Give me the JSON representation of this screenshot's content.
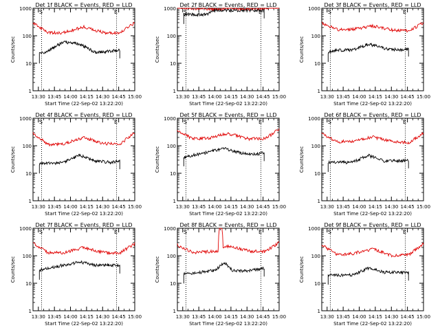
{
  "chart_data": [
    {
      "type": "line",
      "title": "Det 1f BLACK = Events, RED = LLD",
      "xlabel": "Start Time (22-Sep-02 13:22:20)",
      "ylabel": "Counts/sec",
      "y_scale": "log",
      "ylim": [
        1,
        1000
      ],
      "y_ticks": [
        "1",
        "10",
        "100",
        "1000"
      ],
      "x_range": [
        "13:25",
        "15:00"
      ],
      "x_ticks": [
        "13:30",
        "13:45",
        "14:00",
        "14:15",
        "14:30",
        "14:45",
        "15:00"
      ],
      "markers": [
        {
          "label": "S",
          "time": "13:33"
        },
        {
          "label": "E",
          "time": "14:43"
        }
      ],
      "series": [
        {
          "color": "#000000",
          "start": "13:31",
          "end": "14:46",
          "points": [
            [
              0,
              22
            ],
            [
              0.1,
              28
            ],
            [
              0.3,
              60
            ],
            [
              0.5,
              50
            ],
            [
              0.7,
              25
            ],
            [
              0.9,
              28
            ],
            [
              1,
              30
            ]
          ]
        },
        {
          "color": "#e00000",
          "start": "13:25",
          "end": "15:00",
          "points": [
            [
              0,
              300
            ],
            [
              0.14,
              130
            ],
            [
              0.3,
              130
            ],
            [
              0.5,
              210
            ],
            [
              0.7,
              130
            ],
            [
              0.86,
              130
            ],
            [
              1,
              300
            ]
          ]
        }
      ]
    },
    {
      "type": "line",
      "title": "Det 2f BLACK = Events, RED = LLD",
      "xlabel": "Start Time (22-Sep-02 13:22:20)",
      "ylabel": "Counts/sec",
      "y_scale": "log",
      "ylim": [
        1,
        1000
      ],
      "y_ticks": [
        "1",
        "10",
        "100",
        "1000"
      ],
      "x_range": [
        "13:25",
        "15:00"
      ],
      "x_ticks": [
        "13:30",
        "13:45",
        "14:00",
        "14:15",
        "14:30",
        "14:45",
        "15:00"
      ],
      "markers": [
        {
          "label": "S",
          "time": "13:33"
        },
        {
          "label": "E",
          "time": "14:43"
        }
      ],
      "series": [
        {
          "color": "#000000",
          "start": "13:31",
          "end": "14:46",
          "points": [
            [
              0,
              600
            ],
            [
              0.3,
              600
            ],
            [
              0.35,
              850
            ],
            [
              0.6,
              850
            ],
            [
              1,
              850
            ]
          ]
        },
        {
          "color": "#e00000",
          "start": "13:25",
          "end": "15:00",
          "points": [
            [
              0,
              1050
            ],
            [
              0.3,
              950
            ],
            [
              0.5,
              1000
            ],
            [
              0.7,
              950
            ],
            [
              1,
              1100
            ]
          ]
        }
      ]
    },
    {
      "type": "line",
      "title": "Det 3f BLACK = Events, RED = LLD",
      "xlabel": "Start Time (22-Sep-02 13:22:20)",
      "ylabel": "Counts/sec",
      "y_scale": "log",
      "ylim": [
        1,
        1000
      ],
      "y_ticks": [
        "1",
        "10",
        "100",
        "1000"
      ],
      "x_range": [
        "13:25",
        "15:00"
      ],
      "x_ticks": [
        "13:30",
        "13:45",
        "14:00",
        "14:15",
        "14:30",
        "14:45",
        "15:00"
      ],
      "markers": [
        {
          "label": "S",
          "time": "13:33"
        },
        {
          "label": "E",
          "time": "14:43"
        }
      ],
      "series": [
        {
          "color": "#000000",
          "start": "13:31",
          "end": "14:46",
          "points": [
            [
              0,
              25
            ],
            [
              0.1,
              30
            ],
            [
              0.3,
              30
            ],
            [
              0.5,
              50
            ],
            [
              0.7,
              35
            ],
            [
              0.9,
              30
            ],
            [
              1,
              35
            ]
          ]
        },
        {
          "color": "#e00000",
          "start": "13:25",
          "end": "15:00",
          "points": [
            [
              0,
              300
            ],
            [
              0.15,
              170
            ],
            [
              0.3,
              170
            ],
            [
              0.5,
              230
            ],
            [
              0.7,
              160
            ],
            [
              0.86,
              150
            ],
            [
              1,
              300
            ]
          ]
        }
      ]
    },
    {
      "type": "line",
      "title": "Det 4f BLACK = Events, RED = LLD",
      "xlabel": "Start Time (22-Sep-02 13:22:20)",
      "ylabel": "Counts/sec",
      "y_scale": "log",
      "ylim": [
        1,
        1000
      ],
      "y_ticks": [
        "1",
        "10",
        "100",
        "1000"
      ],
      "x_range": [
        "13:25",
        "15:00"
      ],
      "x_ticks": [
        "13:30",
        "13:45",
        "14:00",
        "14:15",
        "14:30",
        "14:45",
        "15:00"
      ],
      "markers": [
        {
          "label": "S",
          "time": "13:33"
        },
        {
          "label": "E",
          "time": "14:43"
        }
      ],
      "series": [
        {
          "color": "#000000",
          "start": "13:31",
          "end": "14:46",
          "points": [
            [
              0,
              22
            ],
            [
              0.3,
              25
            ],
            [
              0.5,
              45
            ],
            [
              0.7,
              28
            ],
            [
              0.9,
              25
            ],
            [
              1,
              28
            ]
          ]
        },
        {
          "color": "#e00000",
          "start": "13:25",
          "end": "15:00",
          "points": [
            [
              0,
              300
            ],
            [
              0.15,
              110
            ],
            [
              0.3,
              120
            ],
            [
              0.5,
              200
            ],
            [
              0.7,
              120
            ],
            [
              0.86,
              120
            ],
            [
              1,
              300
            ]
          ]
        }
      ]
    },
    {
      "type": "line",
      "title": "Det 5f BLACK = Events, RED = LLD",
      "xlabel": "Start Time (22-Sep-02 13:22:20)",
      "ylabel": "Counts/sec",
      "y_scale": "log",
      "ylim": [
        1,
        1000
      ],
      "y_ticks": [
        "1",
        "10",
        "100",
        "1000"
      ],
      "x_range": [
        "13:25",
        "15:00"
      ],
      "x_ticks": [
        "13:30",
        "13:45",
        "14:00",
        "14:15",
        "14:30",
        "14:45",
        "15:00"
      ],
      "markers": [
        {
          "label": "S",
          "time": "13:33"
        },
        {
          "label": "E",
          "time": "14:43"
        }
      ],
      "series": [
        {
          "color": "#000000",
          "start": "13:31",
          "end": "14:46",
          "points": [
            [
              0,
              40
            ],
            [
              0.2,
              50
            ],
            [
              0.5,
              80
            ],
            [
              0.7,
              55
            ],
            [
              0.9,
              50
            ],
            [
              1,
              55
            ]
          ]
        },
        {
          "color": "#e00000",
          "start": "13:25",
          "end": "15:00",
          "points": [
            [
              0,
              350
            ],
            [
              0.15,
              180
            ],
            [
              0.3,
              190
            ],
            [
              0.5,
              280
            ],
            [
              0.7,
              180
            ],
            [
              0.86,
              180
            ],
            [
              1,
              400
            ]
          ]
        }
      ]
    },
    {
      "type": "line",
      "title": "Det 6f BLACK = Events, RED = LLD",
      "xlabel": "Start Time (22-Sep-02 13:22:20)",
      "ylabel": "Counts/sec",
      "y_scale": "log",
      "ylim": [
        1,
        1000
      ],
      "y_ticks": [
        "1",
        "10",
        "100",
        "1000"
      ],
      "x_range": [
        "13:25",
        "15:00"
      ],
      "x_ticks": [
        "13:30",
        "13:45",
        "14:00",
        "14:15",
        "14:30",
        "14:45",
        "15:00"
      ],
      "markers": [
        {
          "label": "S",
          "time": "13:33"
        },
        {
          "label": "E",
          "time": "14:43"
        }
      ],
      "series": [
        {
          "color": "#000000",
          "start": "13:31",
          "end": "14:46",
          "points": [
            [
              0,
              25
            ],
            [
              0.3,
              25
            ],
            [
              0.5,
              45
            ],
            [
              0.7,
              28
            ],
            [
              0.9,
              28
            ],
            [
              1,
              30
            ]
          ]
        },
        {
          "color": "#e00000",
          "start": "13:25",
          "end": "15:00",
          "points": [
            [
              0,
              280
            ],
            [
              0.15,
              140
            ],
            [
              0.3,
              150
            ],
            [
              0.5,
              210
            ],
            [
              0.7,
              140
            ],
            [
              0.86,
              130
            ],
            [
              1,
              300
            ]
          ]
        }
      ]
    },
    {
      "type": "line",
      "title": "Det 7f BLACK = Events, RED = LLD",
      "xlabel": "Start Time (22-Sep-02 13:22:20)",
      "ylabel": "Counts/sec",
      "y_scale": "log",
      "ylim": [
        1,
        1000
      ],
      "y_ticks": [
        "1",
        "10",
        "100",
        "1000"
      ],
      "x_range": [
        "13:25",
        "15:00"
      ],
      "x_ticks": [
        "13:30",
        "13:45",
        "14:00",
        "14:15",
        "14:30",
        "14:45",
        "15:00"
      ],
      "markers": [
        {
          "label": "S",
          "time": "13:33"
        },
        {
          "label": "E",
          "time": "14:43"
        }
      ],
      "series": [
        {
          "color": "#000000",
          "start": "13:31",
          "end": "14:46",
          "points": [
            [
              0,
              30
            ],
            [
              0.2,
              40
            ],
            [
              0.5,
              60
            ],
            [
              0.7,
              45
            ],
            [
              0.9,
              45
            ],
            [
              1,
              45
            ]
          ]
        },
        {
          "color": "#e00000",
          "start": "13:25",
          "end": "15:00",
          "points": [
            [
              0,
              280
            ],
            [
              0.15,
              130
            ],
            [
              0.3,
              130
            ],
            [
              0.5,
              200
            ],
            [
              0.7,
              130
            ],
            [
              0.86,
              130
            ],
            [
              1,
              280
            ]
          ]
        }
      ]
    },
    {
      "type": "line",
      "title": "Det 8f BLACK = Events, RED = LLD",
      "xlabel": "Start Time (22-Sep-02 13:22:20)",
      "ylabel": "Counts/sec",
      "y_scale": "log",
      "ylim": [
        1,
        1000
      ],
      "y_ticks": [
        "1",
        "10",
        "100",
        "1000"
      ],
      "x_range": [
        "13:25",
        "15:00"
      ],
      "x_ticks": [
        "13:30",
        "13:45",
        "14:00",
        "14:15",
        "14:30",
        "14:45",
        "15:00"
      ],
      "markers": [
        {
          "label": "S",
          "time": "13:33"
        },
        {
          "label": "E",
          "time": "14:43"
        }
      ],
      "series": [
        {
          "color": "#000000",
          "start": "13:31",
          "end": "14:46",
          "points": [
            [
              0,
              22
            ],
            [
              0.2,
              25
            ],
            [
              0.4,
              30
            ],
            [
              0.5,
              60
            ],
            [
              0.6,
              30
            ],
            [
              0.8,
              28
            ],
            [
              1,
              35
            ]
          ]
        },
        {
          "color": "#e00000",
          "start": "13:25",
          "end": "15:00",
          "points": [
            [
              0,
              250
            ],
            [
              0.15,
              130
            ],
            [
              0.4,
              150
            ],
            [
              0.41,
              1000
            ],
            [
              0.44,
              1000
            ],
            [
              0.45,
              200
            ],
            [
              0.5,
              230
            ],
            [
              0.7,
              150
            ],
            [
              0.86,
              140
            ],
            [
              1,
              300
            ]
          ]
        }
      ]
    },
    {
      "type": "line",
      "title": "Det 9f BLACK = Events, RED = LLD",
      "xlabel": "Start Time (22-Sep-02 13:22:20)",
      "ylabel": "Counts/sec",
      "y_scale": "log",
      "ylim": [
        1,
        1000
      ],
      "y_ticks": [
        "1",
        "10",
        "100",
        "1000"
      ],
      "x_range": [
        "13:25",
        "15:00"
      ],
      "x_ticks": [
        "13:30",
        "13:45",
        "14:00",
        "14:15",
        "14:30",
        "14:45",
        "15:00"
      ],
      "markers": [
        {
          "label": "S",
          "time": "13:33"
        },
        {
          "label": "E",
          "time": "14:43"
        }
      ],
      "series": [
        {
          "color": "#000000",
          "start": "13:31",
          "end": "14:46",
          "points": [
            [
              0,
              20
            ],
            [
              0.3,
              20
            ],
            [
              0.5,
              35
            ],
            [
              0.7,
              25
            ],
            [
              0.9,
              25
            ],
            [
              1,
              25
            ]
          ]
        },
        {
          "color": "#e00000",
          "start": "13:25",
          "end": "15:00",
          "points": [
            [
              0,
              250
            ],
            [
              0.15,
              110
            ],
            [
              0.3,
              120
            ],
            [
              0.5,
              180
            ],
            [
              0.7,
              100
            ],
            [
              0.86,
              110
            ],
            [
              1,
              280
            ]
          ]
        }
      ]
    }
  ]
}
